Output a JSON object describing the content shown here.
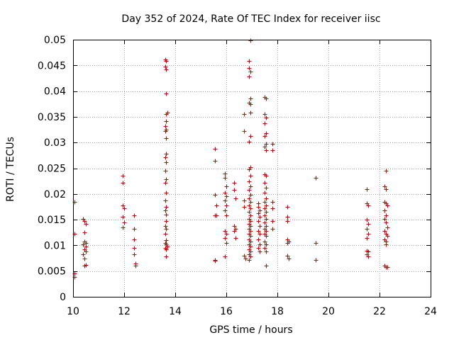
{
  "chart_data": {
    "type": "scatter",
    "title": "Day 352 of 2024, Rate Of TEC Index for receiver iisc",
    "xlabel": "GPS time / hours",
    "ylabel": "ROTI / TECUs",
    "xlim": [
      10,
      24
    ],
    "ylim": [
      0,
      0.05
    ],
    "xticks": [
      10,
      12,
      14,
      16,
      18,
      20,
      22,
      24
    ],
    "xtick_labels": [
      "10",
      "12",
      "14",
      "16",
      "18",
      "20",
      "22",
      "24"
    ],
    "yticks": [
      0,
      0.005,
      0.01,
      0.015,
      0.02,
      0.025,
      0.03,
      0.035,
      0.04,
      0.045,
      0.05
    ],
    "ytick_labels": [
      "0",
      "0.005",
      "0.01",
      "0.015",
      "0.02",
      "0.025",
      "0.03",
      "0.035",
      "0.04",
      "0.045",
      "0.05"
    ],
    "grid": true,
    "marker": "+",
    "color": "#d00000",
    "series": [
      {
        "name": "ROTI",
        "points": [
          [
            10.05,
            0.0185
          ],
          [
            10.05,
            0.0122
          ],
          [
            10.05,
            0.0045
          ],
          [
            10.05,
            0.0038
          ],
          [
            10.4,
            0.0152
          ],
          [
            10.45,
            0.0148
          ],
          [
            10.5,
            0.0142
          ],
          [
            10.45,
            0.0125
          ],
          [
            10.45,
            0.0108
          ],
          [
            10.5,
            0.0105
          ],
          [
            10.4,
            0.0102
          ],
          [
            10.5,
            0.0098
          ],
          [
            10.45,
            0.0092
          ],
          [
            10.5,
            0.0088
          ],
          [
            10.4,
            0.0082
          ],
          [
            10.45,
            0.0075
          ],
          [
            10.5,
            0.0062
          ],
          [
            10.45,
            0.006
          ],
          [
            11.95,
            0.0235
          ],
          [
            11.95,
            0.0222
          ],
          [
            11.95,
            0.0178
          ],
          [
            12.0,
            0.0172
          ],
          [
            11.95,
            0.0155
          ],
          [
            12.0,
            0.0145
          ],
          [
            11.95,
            0.0135
          ],
          [
            12.4,
            0.0158
          ],
          [
            12.4,
            0.0132
          ],
          [
            12.4,
            0.0112
          ],
          [
            12.4,
            0.0095
          ],
          [
            12.4,
            0.0082
          ],
          [
            12.45,
            0.0065
          ],
          [
            12.45,
            0.006
          ],
          [
            13.6,
            0.0462
          ],
          [
            13.65,
            0.0458
          ],
          [
            13.6,
            0.0448
          ],
          [
            13.65,
            0.0442
          ],
          [
            13.65,
            0.0395
          ],
          [
            13.7,
            0.0358
          ],
          [
            13.65,
            0.0355
          ],
          [
            13.65,
            0.0342
          ],
          [
            13.6,
            0.0332
          ],
          [
            13.65,
            0.0325
          ],
          [
            13.6,
            0.0322
          ],
          [
            13.65,
            0.0308
          ],
          [
            13.65,
            0.0278
          ],
          [
            13.6,
            0.0272
          ],
          [
            13.65,
            0.0262
          ],
          [
            13.6,
            0.0245
          ],
          [
            13.65,
            0.0228
          ],
          [
            13.6,
            0.0222
          ],
          [
            13.65,
            0.0202
          ],
          [
            13.6,
            0.0188
          ],
          [
            13.65,
            0.0175
          ],
          [
            13.6,
            0.0168
          ],
          [
            13.65,
            0.016
          ],
          [
            13.65,
            0.0148
          ],
          [
            13.6,
            0.0138
          ],
          [
            13.65,
            0.0132
          ],
          [
            13.6,
            0.0122
          ],
          [
            13.65,
            0.011
          ],
          [
            13.6,
            0.0105
          ],
          [
            13.65,
            0.0102
          ],
          [
            13.7,
            0.0098
          ],
          [
            13.6,
            0.0095
          ],
          [
            13.65,
            0.0092
          ],
          [
            13.65,
            0.0078
          ],
          [
            15.55,
            0.0288
          ],
          [
            15.55,
            0.0265
          ],
          [
            15.55,
            0.0198
          ],
          [
            15.6,
            0.0178
          ],
          [
            15.55,
            0.0158
          ],
          [
            15.6,
            0.0158
          ],
          [
            15.55,
            0.0072
          ],
          [
            15.55,
            0.007
          ],
          [
            15.95,
            0.024
          ],
          [
            15.95,
            0.0232
          ],
          [
            16.0,
            0.0215
          ],
          [
            15.95,
            0.0202
          ],
          [
            16.0,
            0.0195
          ],
          [
            15.95,
            0.0188
          ],
          [
            16.0,
            0.0178
          ],
          [
            15.95,
            0.0168
          ],
          [
            16.0,
            0.0158
          ],
          [
            15.95,
            0.0128
          ],
          [
            16.0,
            0.0122
          ],
          [
            15.95,
            0.0115
          ],
          [
            16.0,
            0.0105
          ],
          [
            15.95,
            0.0078
          ],
          [
            16.3,
            0.0222
          ],
          [
            16.3,
            0.0208
          ],
          [
            16.35,
            0.0192
          ],
          [
            16.3,
            0.0138
          ],
          [
            16.35,
            0.0132
          ],
          [
            16.3,
            0.0128
          ],
          [
            16.35,
            0.0115
          ],
          [
            16.7,
            0.0355
          ],
          [
            16.7,
            0.0322
          ],
          [
            16.7,
            0.0188
          ],
          [
            16.7,
            0.0175
          ],
          [
            16.7,
            0.008
          ],
          [
            16.75,
            0.0075
          ],
          [
            16.9,
            0.0458
          ],
          [
            16.9,
            0.0445
          ],
          [
            16.95,
            0.0438
          ],
          [
            16.9,
            0.0428
          ],
          [
            16.95,
            0.0385
          ],
          [
            16.9,
            0.0378
          ],
          [
            16.95,
            0.0375
          ],
          [
            16.95,
            0.0358
          ],
          [
            16.95,
            0.0312
          ],
          [
            16.9,
            0.0302
          ],
          [
            16.95,
            0.0252
          ],
          [
            16.9,
            0.0248
          ],
          [
            16.95,
            0.0235
          ],
          [
            16.9,
            0.0225
          ],
          [
            16.95,
            0.0215
          ],
          [
            16.9,
            0.0208
          ],
          [
            16.95,
            0.0198
          ],
          [
            16.9,
            0.0192
          ],
          [
            16.95,
            0.0185
          ],
          [
            16.9,
            0.0178
          ],
          [
            16.95,
            0.0172
          ],
          [
            16.9,
            0.0165
          ],
          [
            16.95,
            0.0158
          ],
          [
            16.9,
            0.0152
          ],
          [
            16.95,
            0.0148
          ],
          [
            16.9,
            0.0142
          ],
          [
            16.95,
            0.0138
          ],
          [
            16.9,
            0.0132
          ],
          [
            16.95,
            0.0128
          ],
          [
            16.9,
            0.0122
          ],
          [
            16.95,
            0.0118
          ],
          [
            16.9,
            0.0112
          ],
          [
            16.95,
            0.0108
          ],
          [
            16.9,
            0.0102
          ],
          [
            16.95,
            0.0098
          ],
          [
            16.9,
            0.0092
          ],
          [
            16.95,
            0.0088
          ],
          [
            16.9,
            0.0082
          ],
          [
            16.95,
            0.0078
          ],
          [
            16.9,
            0.0072
          ],
          [
            16.95,
            0.0498
          ],
          [
            17.25,
            0.0182
          ],
          [
            17.25,
            0.0175
          ],
          [
            17.3,
            0.0168
          ],
          [
            17.25,
            0.0162
          ],
          [
            17.3,
            0.0155
          ],
          [
            17.25,
            0.0148
          ],
          [
            17.3,
            0.0138
          ],
          [
            17.25,
            0.0128
          ],
          [
            17.3,
            0.0122
          ],
          [
            17.25,
            0.0112
          ],
          [
            17.3,
            0.0102
          ],
          [
            17.25,
            0.0095
          ],
          [
            17.3,
            0.0088
          ],
          [
            17.5,
            0.0388
          ],
          [
            17.55,
            0.0385
          ],
          [
            17.5,
            0.0355
          ],
          [
            17.55,
            0.0348
          ],
          [
            17.5,
            0.0338
          ],
          [
            17.55,
            0.0318
          ],
          [
            17.5,
            0.0312
          ],
          [
            17.55,
            0.0298
          ],
          [
            17.5,
            0.0292
          ],
          [
            17.55,
            0.0285
          ],
          [
            17.5,
            0.0238
          ],
          [
            17.55,
            0.0235
          ],
          [
            17.5,
            0.0222
          ],
          [
            17.55,
            0.0212
          ],
          [
            17.5,
            0.0202
          ],
          [
            17.55,
            0.0192
          ],
          [
            17.5,
            0.0185
          ],
          [
            17.55,
            0.0178
          ],
          [
            17.5,
            0.0172
          ],
          [
            17.55,
            0.0165
          ],
          [
            17.5,
            0.0158
          ],
          [
            17.55,
            0.0152
          ],
          [
            17.5,
            0.0145
          ],
          [
            17.55,
            0.0138
          ],
          [
            17.5,
            0.0132
          ],
          [
            17.55,
            0.0128
          ],
          [
            17.5,
            0.0122
          ],
          [
            17.55,
            0.0118
          ],
          [
            17.5,
            0.0108
          ],
          [
            17.55,
            0.0102
          ],
          [
            17.5,
            0.0095
          ],
          [
            17.55,
            0.0088
          ],
          [
            17.55,
            0.006
          ],
          [
            17.8,
            0.0298
          ],
          [
            17.8,
            0.0285
          ],
          [
            17.8,
            0.0185
          ],
          [
            17.8,
            0.0172
          ],
          [
            17.8,
            0.0148
          ],
          [
            17.8,
            0.0132
          ],
          [
            18.4,
            0.0175
          ],
          [
            18.4,
            0.0155
          ],
          [
            18.4,
            0.0148
          ],
          [
            18.4,
            0.0112
          ],
          [
            18.45,
            0.0108
          ],
          [
            18.4,
            0.0105
          ],
          [
            18.4,
            0.008
          ],
          [
            18.45,
            0.0075
          ],
          [
            19.5,
            0.0232
          ],
          [
            19.5,
            0.0105
          ],
          [
            19.5,
            0.0072
          ],
          [
            21.5,
            0.021
          ],
          [
            21.5,
            0.0182
          ],
          [
            21.55,
            0.0178
          ],
          [
            21.5,
            0.015
          ],
          [
            21.55,
            0.0142
          ],
          [
            21.5,
            0.0132
          ],
          [
            21.55,
            0.0122
          ],
          [
            21.5,
            0.0115
          ],
          [
            21.5,
            0.009
          ],
          [
            21.55,
            0.0088
          ],
          [
            21.5,
            0.0082
          ],
          [
            21.55,
            0.0078
          ],
          [
            22.25,
            0.0245
          ],
          [
            22.2,
            0.0215
          ],
          [
            22.25,
            0.021
          ],
          [
            22.2,
            0.0185
          ],
          [
            22.25,
            0.0182
          ],
          [
            22.3,
            0.0178
          ],
          [
            22.2,
            0.0168
          ],
          [
            22.25,
            0.0158
          ],
          [
            22.2,
            0.0152
          ],
          [
            22.25,
            0.0145
          ],
          [
            22.3,
            0.0135
          ],
          [
            22.2,
            0.0128
          ],
          [
            22.25,
            0.0122
          ],
          [
            22.3,
            0.0118
          ],
          [
            22.2,
            0.0112
          ],
          [
            22.25,
            0.0108
          ],
          [
            22.25,
            0.0102
          ],
          [
            22.2,
            0.006
          ],
          [
            22.25,
            0.0058
          ],
          [
            22.3,
            0.0058
          ]
        ]
      }
    ]
  }
}
